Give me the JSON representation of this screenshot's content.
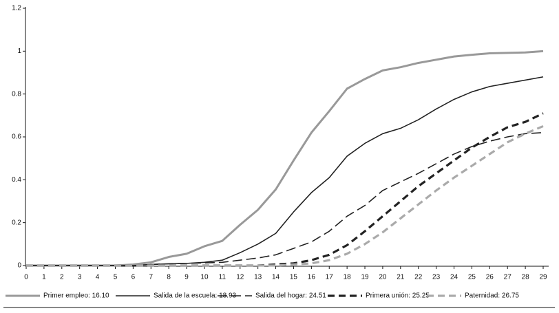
{
  "chart_data": {
    "type": "line",
    "x": [
      0,
      1,
      2,
      3,
      4,
      5,
      6,
      7,
      8,
      9,
      10,
      11,
      12,
      13,
      14,
      15,
      16,
      17,
      18,
      19,
      20,
      21,
      22,
      23,
      24,
      25,
      26,
      27,
      28,
      29
    ],
    "xlim": [
      0,
      29
    ],
    "xticks": [
      0,
      1,
      2,
      3,
      4,
      5,
      6,
      7,
      8,
      9,
      10,
      11,
      12,
      13,
      14,
      15,
      16,
      17,
      18,
      19,
      20,
      21,
      22,
      23,
      24,
      25,
      26,
      27,
      28,
      29
    ],
    "ylim": [
      0,
      1.2
    ],
    "yticks": [
      0,
      0.2,
      0.4,
      0.6,
      0.8,
      1,
      1.2
    ],
    "legend": "bottom",
    "series": [
      {
        "name": "Primer empleo: 16.10",
        "color": "#999999",
        "style": "thick",
        "values": [
          0,
          0,
          0,
          0,
          0,
          0,
          0.005,
          0.015,
          0.04,
          0.055,
          0.09,
          0.115,
          0.19,
          0.26,
          0.355,
          0.49,
          0.62,
          0.72,
          0.825,
          0.87,
          0.91,
          0.925,
          0.945,
          0.96,
          0.975,
          0.983,
          0.99,
          0.992,
          0.994,
          1.0
        ]
      },
      {
        "name": "Salida de la escuela: 18.93",
        "color": "#222222",
        "style": "solid",
        "values": [
          0,
          0,
          0,
          0,
          0,
          0,
          0,
          0.005,
          0.008,
          0.01,
          0.015,
          0.025,
          0.06,
          0.1,
          0.15,
          0.25,
          0.34,
          0.41,
          0.51,
          0.57,
          0.615,
          0.64,
          0.68,
          0.73,
          0.775,
          0.81,
          0.835,
          0.85,
          0.865,
          0.88
        ]
      },
      {
        "name": "Salida del hogar: 24.51",
        "color": "#222222",
        "style": "long-dash",
        "values": [
          0,
          0,
          0,
          0,
          0,
          0,
          0,
          0.005,
          0.008,
          0.01,
          0.012,
          0.015,
          0.025,
          0.035,
          0.05,
          0.08,
          0.11,
          0.16,
          0.23,
          0.28,
          0.35,
          0.39,
          0.43,
          0.475,
          0.52,
          0.555,
          0.58,
          0.6,
          0.615,
          0.62
        ]
      },
      {
        "name": "Primera unión: 25.25",
        "color": "#222222",
        "style": "thick-dash",
        "values": [
          0,
          0,
          0,
          0,
          0,
          0,
          0,
          0,
          0,
          0,
          0,
          0,
          0,
          0,
          0.005,
          0.01,
          0.025,
          0.05,
          0.095,
          0.16,
          0.23,
          0.3,
          0.37,
          0.43,
          0.49,
          0.55,
          0.6,
          0.645,
          0.67,
          0.71
        ]
      },
      {
        "name": "Paternidad: 26.75",
        "color": "#aaaaaa",
        "style": "thick-dash",
        "values": [
          0,
          0,
          0,
          0,
          0,
          0,
          0,
          0,
          0,
          0,
          0,
          0,
          0,
          0,
          0,
          0.005,
          0.01,
          0.025,
          0.055,
          0.1,
          0.155,
          0.22,
          0.285,
          0.35,
          0.41,
          0.465,
          0.52,
          0.575,
          0.615,
          0.65
        ]
      }
    ]
  }
}
